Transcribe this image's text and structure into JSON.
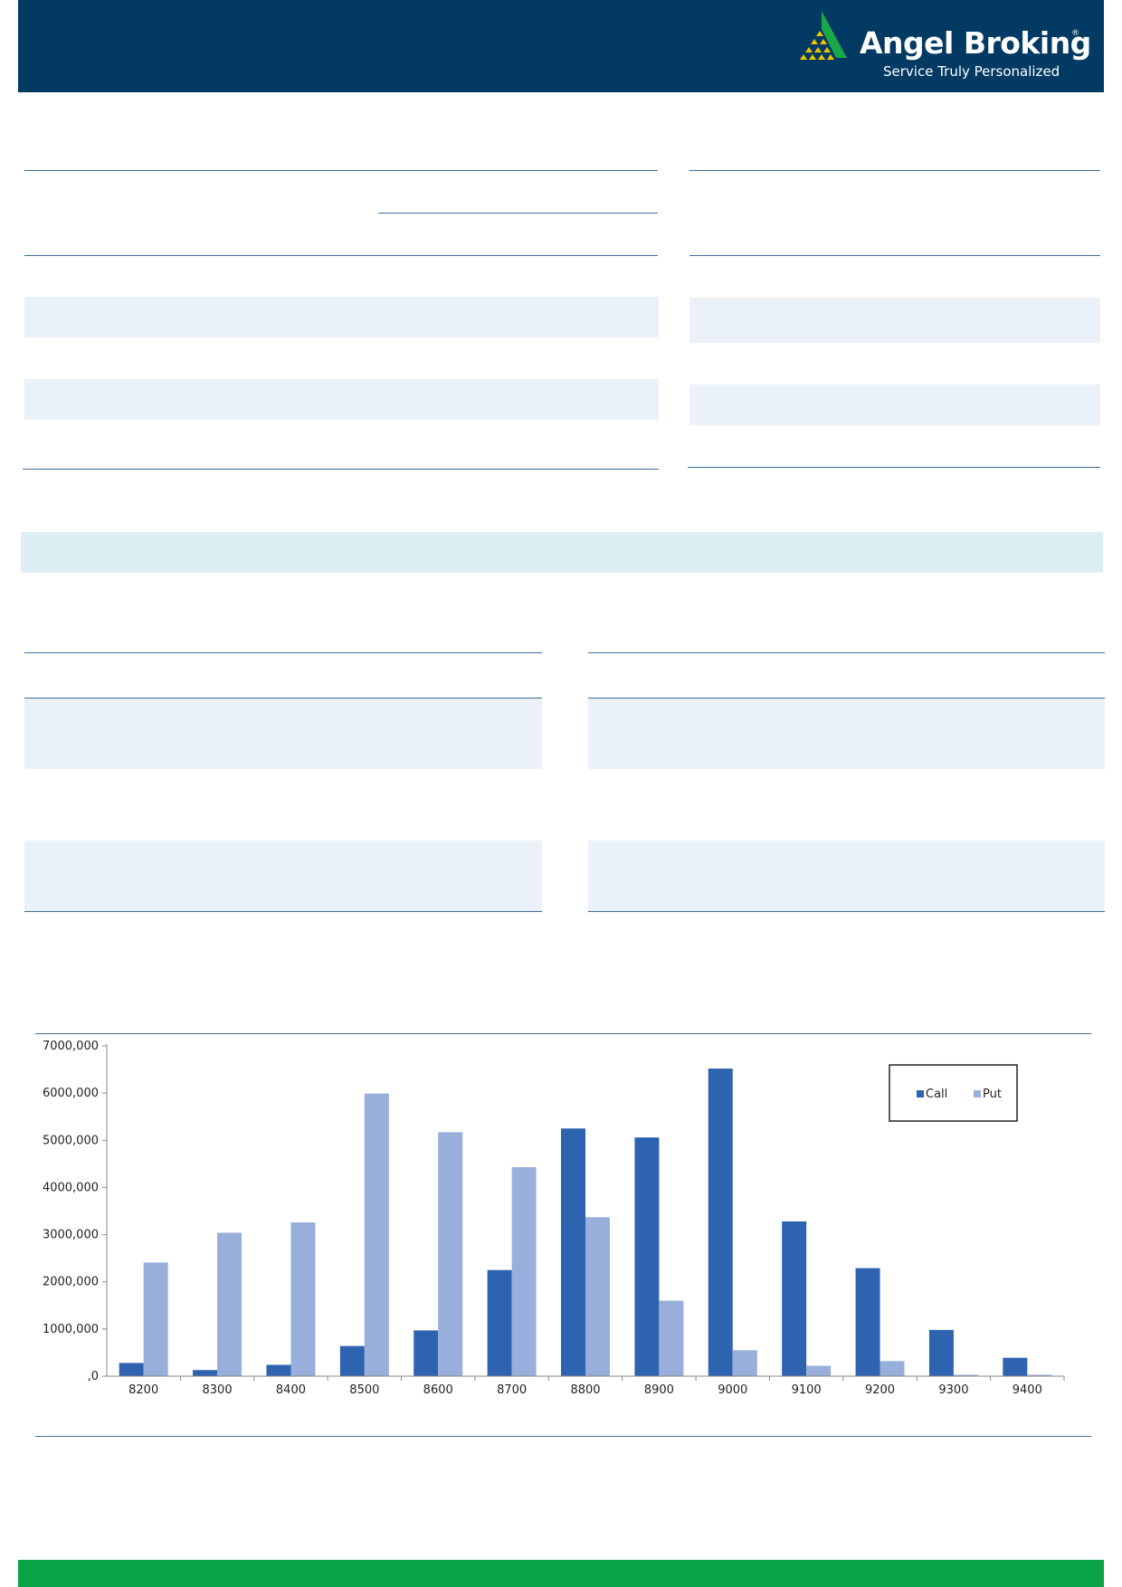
{
  "header": {
    "brand_name": "Angel Broking",
    "registered_mark": "®",
    "tagline": "Service Truly Personalized",
    "logo_icon": "triangle-pyramid-logo",
    "colors": {
      "bar": "#033a63",
      "logo_green": "#1aa84a",
      "logo_yellow": "#f2c300"
    }
  },
  "footer": {
    "color": "#0aa447"
  },
  "chart_data": {
    "type": "bar",
    "categories": [
      "8200",
      "8300",
      "8400",
      "8500",
      "8600",
      "8700",
      "8800",
      "8900",
      "9000",
      "9100",
      "9200",
      "9300",
      "9400"
    ],
    "series": [
      {
        "name": "Call",
        "color": "#2e63b0",
        "values": [
          280000,
          130000,
          240000,
          640000,
          970000,
          2250000,
          5250000,
          5060000,
          6520000,
          3280000,
          2290000,
          980000,
          390000
        ]
      },
      {
        "name": "Put",
        "color": "#98aedb",
        "values": [
          2410000,
          3040000,
          3260000,
          5990000,
          5170000,
          4430000,
          3370000,
          1600000,
          550000,
          220000,
          320000,
          30000,
          30000
        ]
      }
    ],
    "ylim": [
      0,
      7000000
    ],
    "yticks": [
      0,
      1000000,
      2000000,
      3000000,
      4000000,
      5000000,
      6000000,
      7000000
    ],
    "ytick_labels": [
      ",0",
      "1000,000",
      "2000,000",
      "3000,000",
      "4000,000",
      "5000,000",
      "6000,000",
      "7000,000"
    ],
    "legend_position": "top-right",
    "grid": false,
    "title": "",
    "xlabel": "",
    "ylabel": ""
  }
}
